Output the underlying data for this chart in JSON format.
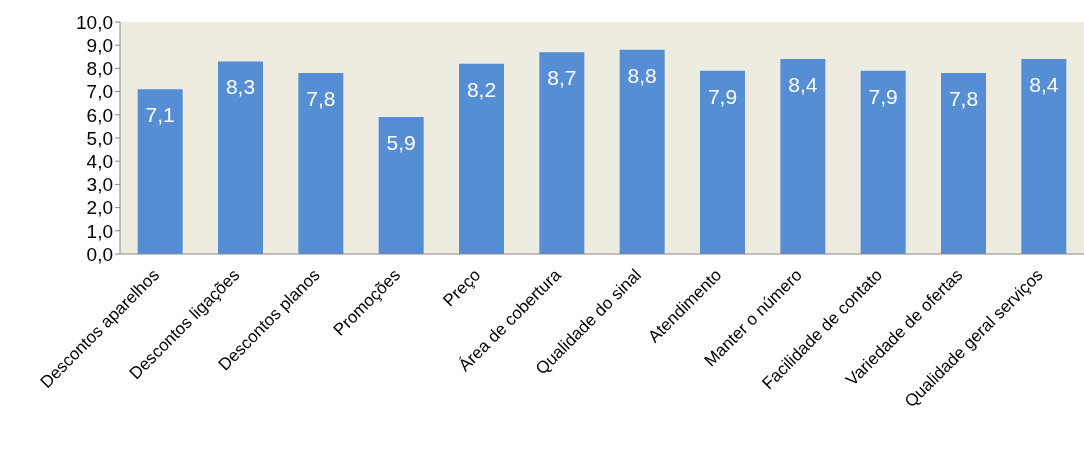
{
  "chart_data": {
    "type": "bar",
    "categories": [
      "Descontos aparelhos",
      "Descontos ligações",
      "Descontos planos",
      "Promoções",
      "Preço",
      "Área de cobertura",
      "Qualidade do sinal",
      "Atendimento",
      "Manter o número",
      "Facilidade de contato",
      "Variedade de ofertas",
      "Qualidade geral serviços"
    ],
    "values": [
      7.1,
      8.3,
      7.8,
      5.9,
      8.2,
      8.7,
      8.8,
      7.9,
      8.4,
      7.9,
      7.8,
      8.4
    ],
    "value_labels": [
      "7,1",
      "8,3",
      "7,8",
      "5,9",
      "8,2",
      "8,7",
      "8,8",
      "7,9",
      "8,4",
      "7,9",
      "7,8",
      "8,4"
    ],
    "color": "#558ed5",
    "ylim": [
      0,
      10
    ],
    "yticks": [
      {
        "value": 0,
        "label": "0,0"
      },
      {
        "value": 1,
        "label": "1,0"
      },
      {
        "value": 2,
        "label": "2,0"
      },
      {
        "value": 3,
        "label": "3,0"
      },
      {
        "value": 4,
        "label": "4,0"
      },
      {
        "value": 5,
        "label": "5,0"
      },
      {
        "value": 6,
        "label": "6,0"
      },
      {
        "value": 7,
        "label": "7,0"
      },
      {
        "value": 8,
        "label": "8,0"
      },
      {
        "value": 9,
        "label": "9,0"
      },
      {
        "value": 10,
        "label": "10,0"
      }
    ],
    "grid": false,
    "legend": false
  }
}
